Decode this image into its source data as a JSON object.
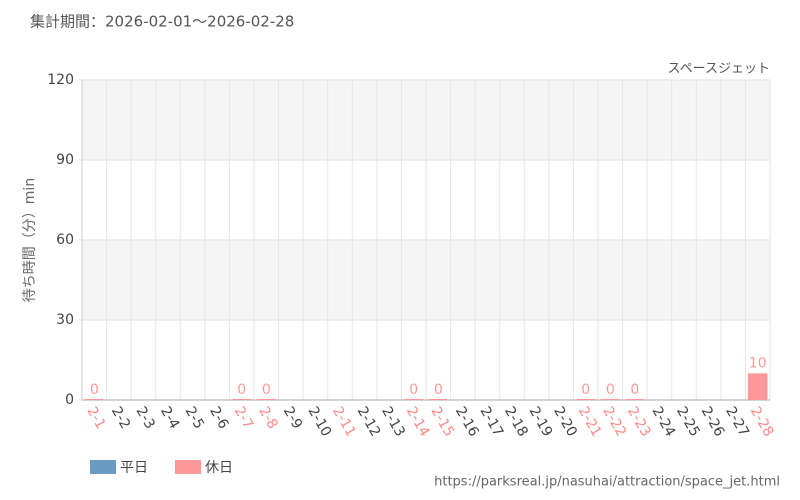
{
  "chart_data": {
    "type": "bar",
    "title": "集計期間：2026-02-01～2026-02-28",
    "subtitle": "スペースジェット",
    "y_label": "待ち時間（分）min",
    "source": "https://parksreal.jp/nasuhai/attraction/space_jet.html",
    "categories": [
      "2-1",
      "2-2",
      "2-3",
      "2-4",
      "2-5",
      "2-6",
      "2-7",
      "2-8",
      "2-9",
      "2-10",
      "2-11",
      "2-12",
      "2-13",
      "2-14",
      "2-15",
      "2-16",
      "2-17",
      "2-18",
      "2-19",
      "2-20",
      "2-21",
      "2-22",
      "2-23",
      "2-24",
      "2-25",
      "2-26",
      "2-27",
      "2-28"
    ],
    "category_colors": [
      "#ff8888",
      "#444444",
      "#444444",
      "#444444",
      "#444444",
      "#444444",
      "#ff8888",
      "#ff8888",
      "#444444",
      "#444444",
      "#ff8888",
      "#444444",
      "#444444",
      "#ff8888",
      "#ff8888",
      "#444444",
      "#444444",
      "#444444",
      "#444444",
      "#444444",
      "#ff8888",
      "#ff8888",
      "#ff8888",
      "#444444",
      "#444444",
      "#444444",
      "#444444",
      "#ff8888"
    ],
    "series": [
      {
        "name": "平日",
        "color": "#6a9bc3",
        "values": [
          null,
          null,
          null,
          null,
          null,
          null,
          null,
          null,
          null,
          null,
          null,
          null,
          null,
          null,
          null,
          null,
          null,
          null,
          null,
          null,
          null,
          null,
          null,
          null,
          null,
          null,
          null,
          null
        ]
      },
      {
        "name": "休日",
        "color": "#ff9999",
        "values": [
          0,
          null,
          null,
          null,
          null,
          null,
          0,
          0,
          null,
          null,
          null,
          null,
          null,
          0,
          0,
          null,
          null,
          null,
          null,
          null,
          0,
          0,
          0,
          null,
          null,
          null,
          null,
          10
        ]
      }
    ],
    "ylim": [
      0,
      120
    ],
    "yticks": [
      0,
      30,
      60,
      90,
      120
    ],
    "grid": true
  }
}
